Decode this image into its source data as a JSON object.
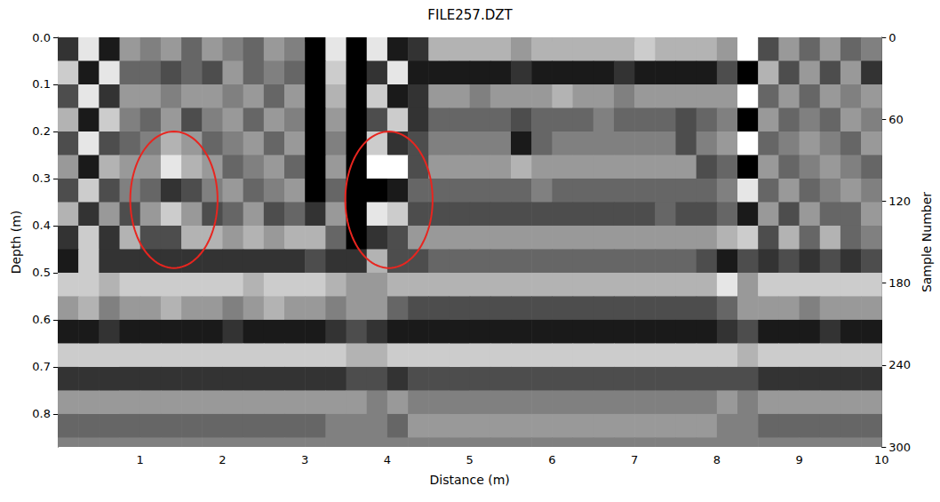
{
  "chart_data": {
    "type": "heatmap",
    "title": "FILE257.DZT",
    "x_label": "Distance (m)",
    "y_label": "Depth (m)",
    "y2_label": "Sample Number",
    "xlim": [
      0,
      10
    ],
    "xticks": [
      1,
      2,
      3,
      4,
      5,
      6,
      7,
      8,
      9,
      10
    ],
    "ylim": [
      0,
      0.87
    ],
    "yticks": [
      {
        "value": 0,
        "label": "0.0"
      },
      0.1,
      0.2,
      0.3,
      0.4,
      0.5,
      0.6,
      0.7,
      0.8
    ],
    "y2lim": [
      0,
      300
    ],
    "y2ticks": [
      0,
      60,
      120,
      180,
      240,
      300
    ],
    "grid": false,
    "tick_labels": true,
    "color_range": [
      -5,
      5
    ],
    "x_edges": [
      0,
      0.25,
      0.5,
      0.75,
      1,
      1.25,
      1.5,
      1.75,
      2,
      2.25,
      2.5,
      2.75,
      3,
      3.25,
      3.5,
      3.75,
      4,
      4.25,
      4.5,
      4.75,
      5,
      5.25,
      5.5,
      5.75,
      6,
      6.25,
      6.5,
      6.75,
      7,
      7.25,
      7.5,
      7.75,
      8,
      8.25,
      8.5,
      8.75,
      9,
      9.25,
      9.5,
      9.75,
      10
    ],
    "y_edges": [
      0,
      0.05,
      0.1,
      0.15,
      0.2,
      0.25,
      0.3,
      0.35,
      0.4,
      0.45,
      0.5,
      0.55,
      0.6,
      0.65,
      0.7,
      0.75,
      0.8,
      0.85,
      0.87
    ],
    "cells": [
      [
        -3,
        4,
        -4,
        1,
        0,
        1,
        -1,
        1,
        0,
        -1,
        1,
        0,
        -5,
        4,
        -5,
        4,
        -4,
        -3,
        2,
        2,
        2,
        2,
        1,
        2,
        2,
        2,
        2,
        2,
        3,
        2,
        2,
        2,
        1,
        5,
        -2,
        1,
        -1,
        1,
        -1,
        0
      ],
      [
        3,
        -4,
        4,
        -1,
        -1,
        -2,
        -1,
        -2,
        1,
        -1,
        0,
        -1,
        -5,
        3,
        -5,
        -3,
        4,
        -4,
        -4,
        -4,
        -4,
        -4,
        -3,
        -4,
        -4,
        -4,
        -4,
        -3,
        -4,
        -4,
        -4,
        -4,
        -2,
        -5,
        2,
        -2,
        1,
        -2,
        1,
        -3
      ],
      [
        -2,
        4,
        -3,
        1,
        1,
        0,
        1,
        1,
        0,
        1,
        -1,
        1,
        -5,
        2,
        -5,
        3,
        -4,
        -3,
        1,
        1,
        0,
        1,
        1,
        1,
        2,
        1,
        1,
        0,
        1,
        1,
        1,
        1,
        1,
        5,
        -1,
        1,
        -1,
        1,
        0,
        1
      ],
      [
        2,
        -4,
        3,
        0,
        -1,
        1,
        -2,
        0,
        1,
        -1,
        1,
        0,
        -5,
        1,
        -5,
        -2,
        3,
        -3,
        -1,
        -1,
        -1,
        -1,
        -2,
        -1,
        -1,
        -1,
        0,
        -1,
        -1,
        -1,
        -2,
        -1,
        0,
        -5,
        1,
        -1,
        0,
        -1,
        1,
        0
      ],
      [
        -2,
        4,
        -2,
        -1,
        0,
        2,
        1,
        -1,
        0,
        1,
        -1,
        1,
        -5,
        0,
        -5,
        3,
        -3,
        -2,
        0,
        0,
        0,
        0,
        -4,
        -1,
        0,
        0,
        0,
        0,
        0,
        0,
        -2,
        0,
        1,
        5,
        -1,
        0,
        1,
        0,
        -1,
        1
      ],
      [
        1,
        -4,
        2,
        1,
        1,
        4,
        2,
        1,
        -1,
        0,
        1,
        -1,
        -5,
        1,
        -5,
        5,
        5,
        -2,
        1,
        1,
        1,
        1,
        2,
        1,
        1,
        1,
        1,
        1,
        1,
        1,
        1,
        -2,
        -1,
        -5,
        1,
        -1,
        0,
        1,
        0,
        -1
      ],
      [
        -2,
        3,
        -2,
        0,
        -1,
        -3,
        -2,
        0,
        1,
        -1,
        0,
        1,
        -5,
        -1,
        -5,
        -5,
        -4,
        -1,
        -1,
        -1,
        -1,
        -1,
        -1,
        0,
        -1,
        -1,
        -1,
        -1,
        -1,
        -1,
        -1,
        -1,
        0,
        4,
        -1,
        1,
        -1,
        0,
        1,
        0
      ],
      [
        2,
        -3,
        1,
        -2,
        1,
        3,
        1,
        -2,
        -1,
        1,
        -2,
        -1,
        -3,
        1,
        -5,
        4,
        3,
        -2,
        -2,
        -2,
        -2,
        -2,
        -2,
        -2,
        -2,
        -2,
        -2,
        -2,
        -2,
        -1,
        -2,
        -2,
        -1,
        -4,
        1,
        -2,
        1,
        -1,
        -1,
        1
      ],
      [
        -3,
        3,
        -3,
        2,
        -2,
        -2,
        2,
        2,
        1,
        2,
        1,
        2,
        2,
        -1,
        -5,
        -3,
        -2,
        1,
        1,
        1,
        1,
        1,
        1,
        1,
        1,
        1,
        1,
        1,
        1,
        1,
        1,
        1,
        2,
        3,
        -2,
        2,
        -1,
        2,
        -1,
        0
      ],
      [
        -4,
        3,
        -3,
        -3,
        -3,
        -3,
        -3,
        -3,
        -3,
        -3,
        -3,
        -3,
        -2,
        -3,
        -3,
        2,
        -2,
        -2,
        -1,
        -1,
        -1,
        -1,
        -1,
        -1,
        -1,
        -1,
        -1,
        -1,
        -1,
        -1,
        -1,
        -2,
        -4,
        -2,
        -3,
        -2,
        -3,
        -2,
        -3,
        -2
      ],
      [
        3,
        3,
        2,
        3,
        3,
        3,
        3,
        3,
        3,
        2,
        3,
        3,
        3,
        2,
        1,
        1,
        2,
        2,
        2,
        2,
        2,
        2,
        2,
        2,
        2,
        2,
        2,
        2,
        2,
        2,
        2,
        2,
        4,
        1,
        3,
        3,
        3,
        3,
        3,
        3
      ],
      [
        1,
        2,
        0,
        1,
        1,
        2,
        1,
        1,
        0,
        1,
        2,
        1,
        1,
        0,
        1,
        1,
        -1,
        -2,
        -2,
        -2,
        -2,
        -2,
        -2,
        -2,
        -2,
        -2,
        -2,
        -2,
        -2,
        -2,
        -2,
        -2,
        -1,
        1,
        1,
        1,
        0,
        1,
        1,
        1
      ],
      [
        -4,
        -4,
        -3,
        -4,
        -4,
        -4,
        -4,
        -4,
        -3,
        -4,
        -4,
        -4,
        -4,
        -3,
        -2,
        -3,
        -4,
        -4,
        -4,
        -4,
        -4,
        -4,
        -4,
        -4,
        -4,
        -4,
        -4,
        -4,
        -4,
        -4,
        -4,
        -4,
        -3,
        -2,
        -4,
        -4,
        -4,
        -3,
        -4,
        -4
      ],
      [
        3,
        3,
        3,
        3,
        3,
        3,
        3,
        3,
        3,
        3,
        3,
        3,
        3,
        3,
        2,
        2,
        3,
        3,
        3,
        3,
        3,
        3,
        3,
        3,
        3,
        3,
        3,
        3,
        3,
        3,
        3,
        3,
        3,
        2,
        3,
        3,
        3,
        3,
        3,
        3
      ],
      [
        -3,
        -3,
        -3,
        -3,
        -3,
        -3,
        -3,
        -3,
        -3,
        -3,
        -3,
        -3,
        -3,
        -3,
        -2,
        -2,
        -3,
        -2,
        -2,
        -2,
        -2,
        -2,
        -2,
        -2,
        -2,
        -2,
        -2,
        -2,
        -2,
        -2,
        -2,
        -2,
        -2,
        -2,
        -3,
        -3,
        -3,
        -3,
        -3,
        -3
      ],
      [
        1,
        1,
        1,
        1,
        1,
        1,
        1,
        1,
        1,
        1,
        1,
        1,
        1,
        1,
        1,
        0,
        1,
        0,
        0,
        0,
        0,
        0,
        0,
        0,
        0,
        0,
        0,
        0,
        0,
        0,
        0,
        0,
        1,
        0,
        1,
        1,
        1,
        1,
        1,
        1
      ],
      [
        -1,
        -1,
        -1,
        -1,
        -1,
        -1,
        -1,
        -1,
        -1,
        -1,
        -1,
        -1,
        -1,
        0,
        0,
        0,
        -1,
        1,
        1,
        1,
        1,
        1,
        1,
        1,
        1,
        1,
        1,
        1,
        1,
        1,
        1,
        1,
        0,
        0,
        -1,
        -1,
        -1,
        -1,
        -1,
        -1
      ],
      [
        0,
        0,
        0,
        0,
        0,
        0,
        0,
        0,
        0,
        0,
        0,
        0,
        0,
        0,
        0,
        0,
        0,
        0,
        0,
        0,
        0,
        0,
        0,
        0,
        0,
        0,
        0,
        0,
        0,
        0,
        0,
        0,
        0,
        0,
        0,
        0,
        0,
        0,
        0,
        0
      ]
    ],
    "annotations": [
      {
        "shape": "ellipse",
        "center": [
          1.41,
          0.345
        ],
        "radii": [
          0.53,
          0.145
        ],
        "color": "#e8251f"
      },
      {
        "shape": "ellipse",
        "center": [
          4.02,
          0.345
        ],
        "radii": [
          0.53,
          0.145
        ],
        "color": "#e8251f"
      }
    ]
  }
}
